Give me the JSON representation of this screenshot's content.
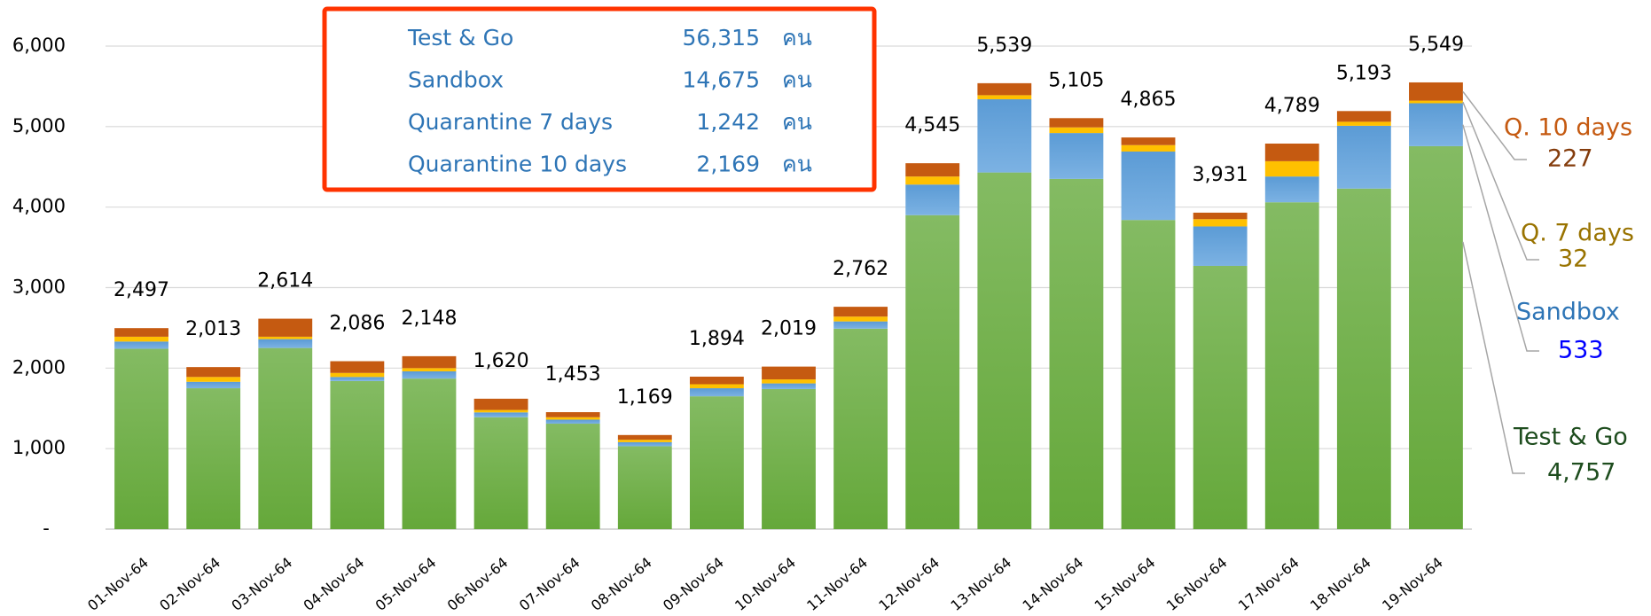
{
  "chart_data": {
    "type": "stacked_bar",
    "categories": [
      "01-Nov-64",
      "02-Nov-64",
      "03-Nov-64",
      "04-Nov-64",
      "05-Nov-64",
      "06-Nov-64",
      "07-Nov-64",
      "08-Nov-64",
      "09-Nov-64",
      "10-Nov-64",
      "11-Nov-64",
      "12-Nov-64",
      "13-Nov-64",
      "14-Nov-64",
      "15-Nov-64",
      "16-Nov-64",
      "17-Nov-64",
      "18-Nov-64",
      "19-Nov-64"
    ],
    "series": [
      {
        "name": "Test & Go",
        "color": "#70ad47",
        "values": [
          2240,
          1750,
          2250,
          1840,
          1870,
          1390,
          1310,
          1030,
          1650,
          1740,
          2490,
          3900,
          4430,
          4350,
          3840,
          3270,
          4060,
          4230,
          4757
        ],
        "value_labels": [
          null,
          null,
          null,
          null,
          null,
          null,
          null,
          null,
          null,
          null,
          null,
          null,
          null,
          null,
          null,
          null,
          null,
          null,
          "4,757"
        ]
      },
      {
        "name": "Sandbox",
        "color": "#5b9bd5",
        "values": [
          90,
          80,
          110,
          50,
          90,
          60,
          50,
          50,
          100,
          70,
          90,
          380,
          910,
          570,
          850,
          490,
          320,
          780,
          533
        ],
        "value_labels": [
          null,
          null,
          null,
          null,
          null,
          null,
          null,
          null,
          null,
          null,
          null,
          null,
          null,
          null,
          null,
          null,
          null,
          null,
          "533"
        ]
      },
      {
        "name": "Q. 7 days",
        "color": "#ffc000",
        "values": [
          60,
          60,
          30,
          50,
          40,
          30,
          30,
          30,
          50,
          50,
          60,
          100,
          50,
          70,
          80,
          90,
          190,
          50,
          32
        ],
        "value_labels": [
          null,
          null,
          null,
          null,
          null,
          null,
          null,
          null,
          null,
          null,
          null,
          null,
          null,
          null,
          null,
          null,
          null,
          null,
          "32"
        ]
      },
      {
        "name": "Q. 10 days",
        "color": "#c55a11",
        "values": [
          107,
          123,
          224,
          146,
          148,
          140,
          63,
          59,
          94,
          159,
          122,
          165,
          149,
          115,
          95,
          81,
          219,
          133,
          227
        ],
        "value_labels": [
          null,
          null,
          null,
          null,
          null,
          null,
          null,
          null,
          null,
          null,
          null,
          null,
          null,
          null,
          null,
          null,
          null,
          null,
          "227"
        ]
      }
    ],
    "totals": [
      2497,
      2013,
      2614,
      2086,
      2148,
      1620,
      1453,
      1169,
      1894,
      2019,
      2762,
      4545,
      5539,
      5105,
      4865,
      3931,
      4789,
      5193,
      5549
    ],
    "total_labels": [
      "2,497",
      "2,013",
      "2,614",
      "2,086",
      "2,148",
      "1,620",
      "1,453",
      "1,169",
      "1,894",
      "2,019",
      "2,762",
      "4,545",
      "5,539",
      "5,105",
      "4,865",
      "3,931",
      "4,789",
      "5,193",
      "5,549"
    ],
    "ylim": [
      0,
      6000
    ],
    "yticks": [
      {
        "value": 0,
        "label": "-"
      },
      {
        "value": 1000,
        "label": "1,000"
      },
      {
        "value": 2000,
        "label": "2,000"
      },
      {
        "value": 3000,
        "label": "3,000"
      },
      {
        "value": 4000,
        "label": "4,000"
      },
      {
        "value": 5000,
        "label": "5,000"
      },
      {
        "value": 6000,
        "label": "6,000"
      }
    ],
    "grid": true,
    "summary": [
      {
        "label": "Test & Go",
        "value": 56315,
        "value_label": "56,315",
        "unit": "คน"
      },
      {
        "label": "Sandbox",
        "value": 14675,
        "value_label": "14,675",
        "unit": "คน"
      },
      {
        "label": "Quarantine 7 days",
        "value": 1242,
        "value_label": "1,242",
        "unit": "คน"
      },
      {
        "label": "Quarantine 10 days",
        "value": 2169,
        "value_label": "2,169",
        "unit": "คน"
      }
    ]
  }
}
